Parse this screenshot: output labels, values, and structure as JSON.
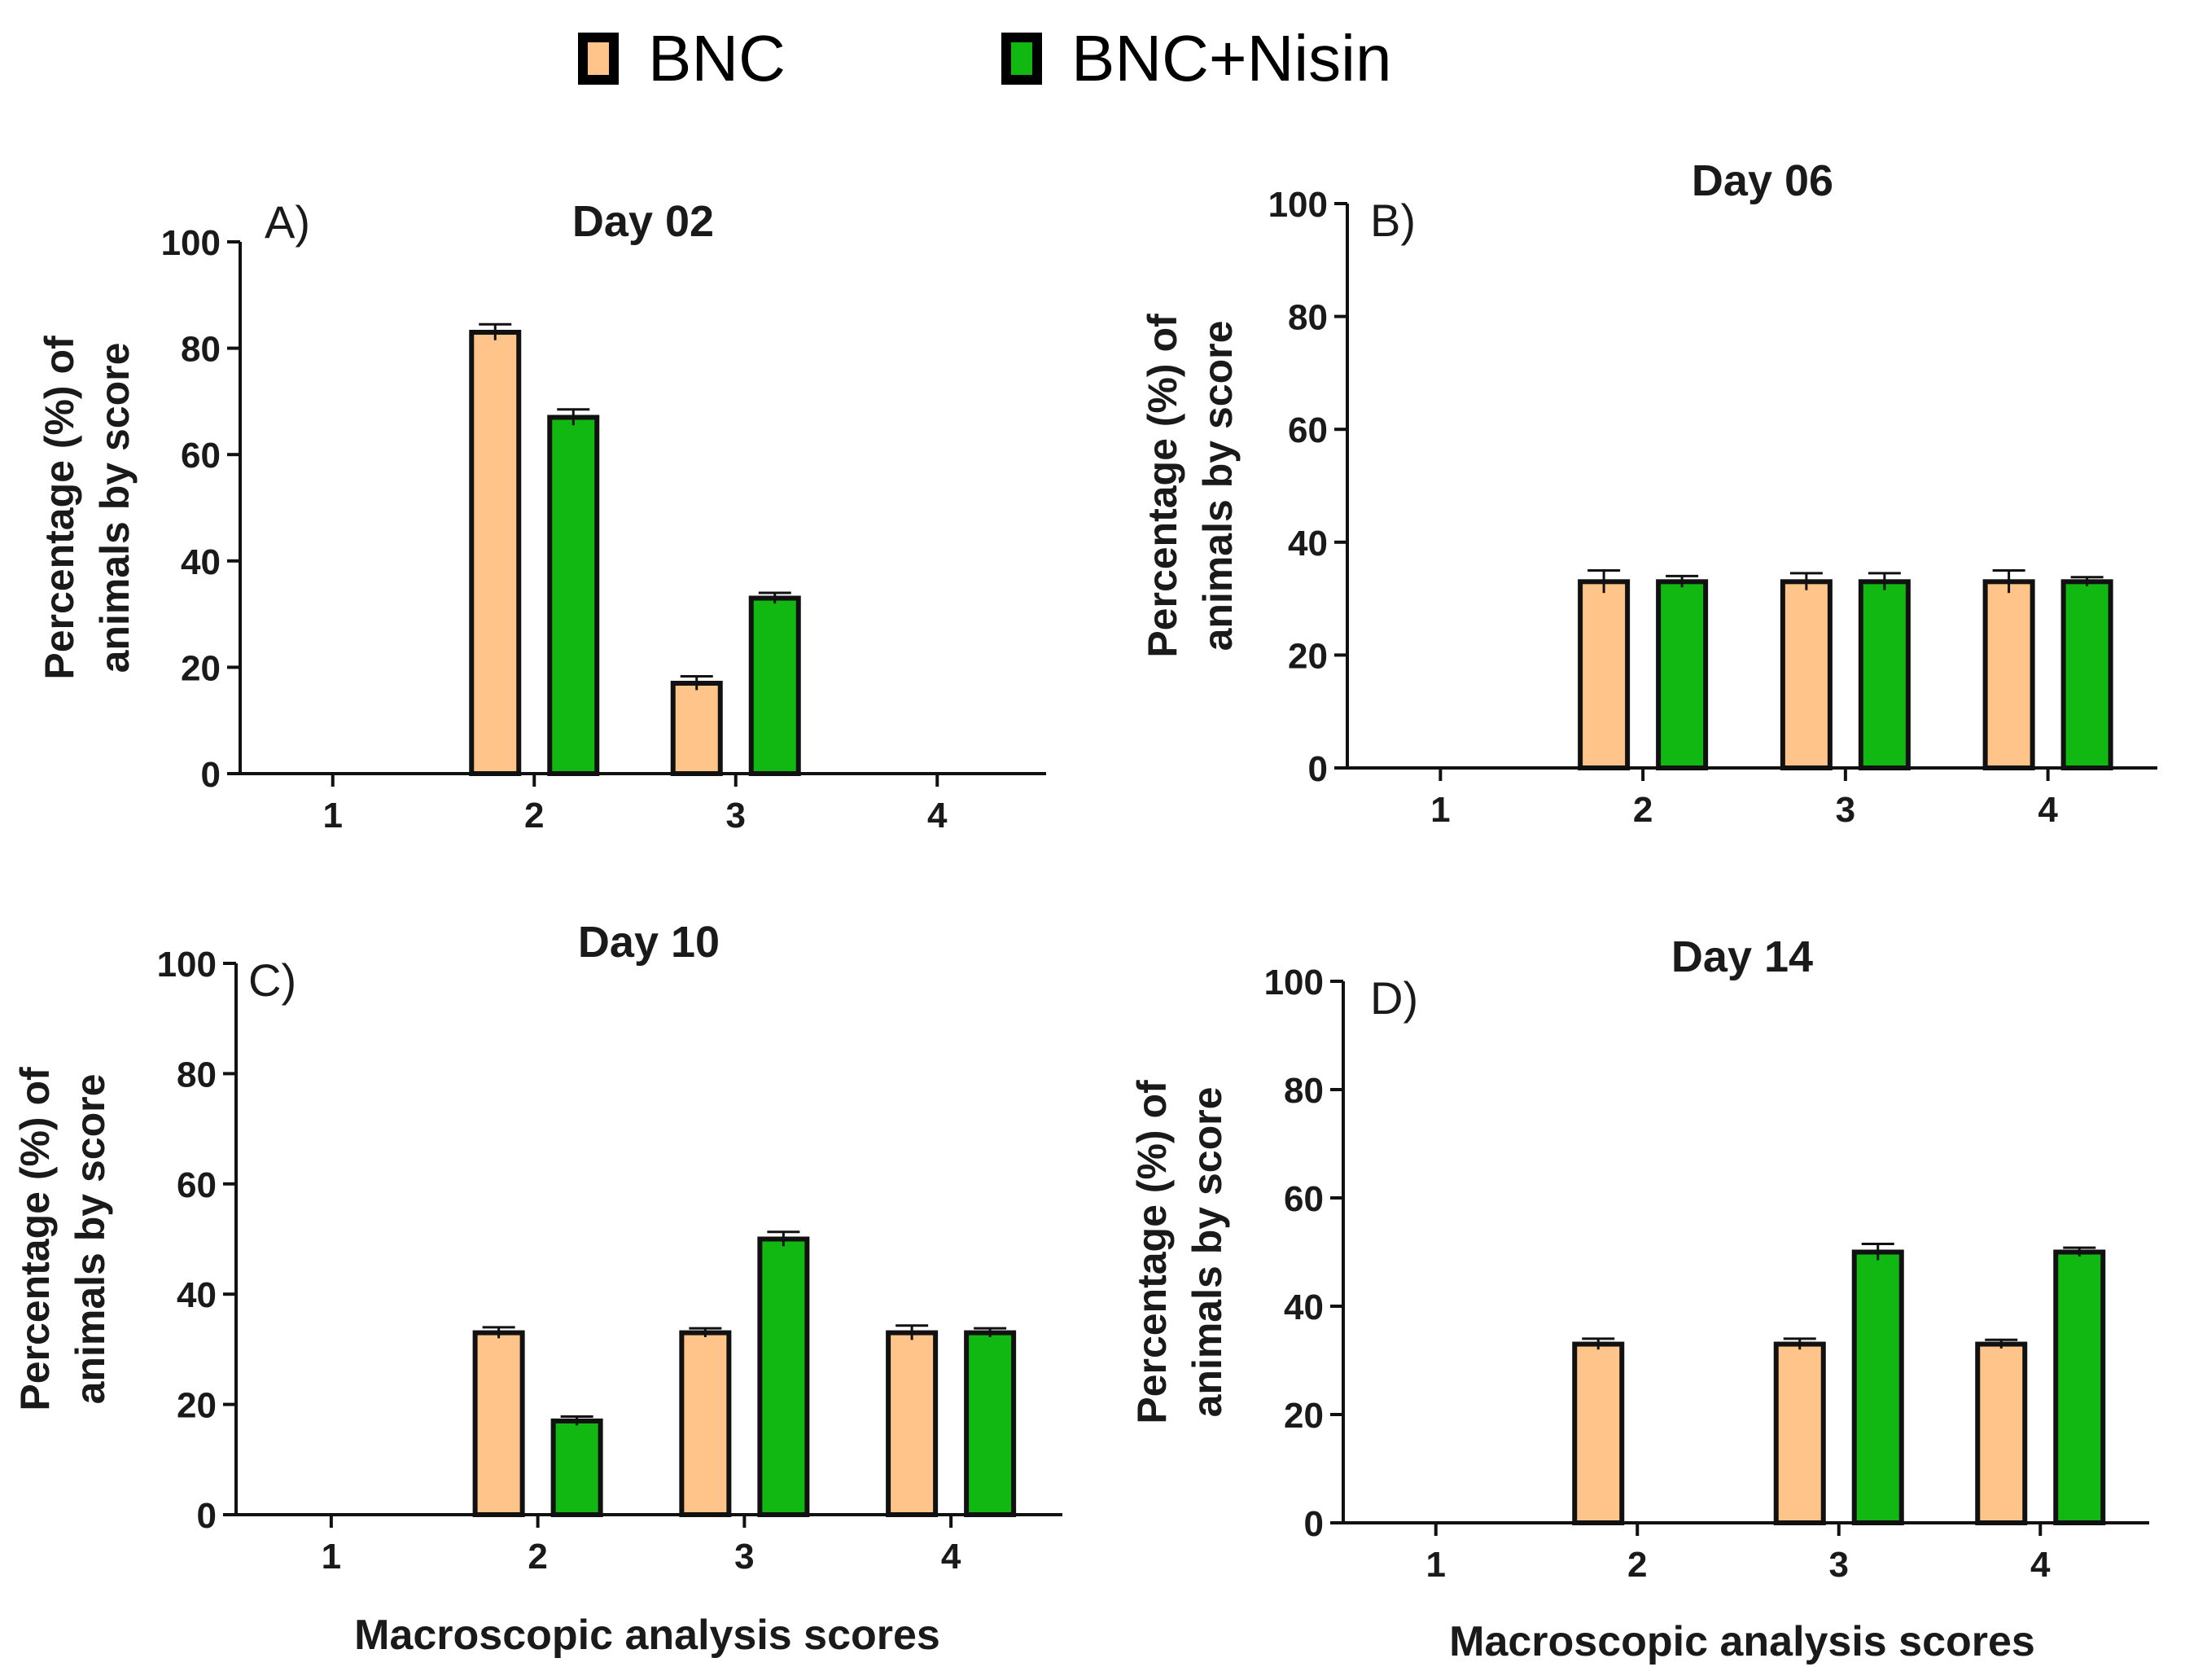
{
  "legend": {
    "items": [
      {
        "label": "BNC",
        "color": "#FFC48A"
      },
      {
        "label": "BNC+Nisin",
        "color": "#12B812"
      }
    ]
  },
  "x_axis_title": "Macroscopic analysis scores",
  "chart_data": [
    {
      "type": "bar",
      "panel_label": "A)",
      "title": "Day 02",
      "xlabel": "",
      "ylabel": "Percentage (%) of animals by score",
      "ylabel_lines": [
        "Percentage (%) of",
        "animals by score"
      ],
      "categories": [
        "1",
        "2",
        "3",
        "4"
      ],
      "yticks": [
        "0",
        "20",
        "40",
        "60",
        "80",
        "100"
      ],
      "ylim": [
        0,
        100
      ],
      "series": [
        {
          "name": "BNC",
          "values": [
            0,
            83,
            17,
            0
          ],
          "errors": [
            0,
            1.5,
            1.3,
            0
          ]
        },
        {
          "name": "BNC+Nisin",
          "values": [
            0,
            67,
            33,
            0
          ],
          "errors": [
            0,
            1.5,
            1,
            0
          ]
        }
      ]
    },
    {
      "type": "bar",
      "panel_label": "B)",
      "title": "Day 06",
      "xlabel": "",
      "ylabel": "Percentage (%) of animals by score",
      "ylabel_lines": [
        "Percentage (%) of",
        "animals by score"
      ],
      "categories": [
        "1",
        "2",
        "3",
        "4"
      ],
      "yticks": [
        "0",
        "20",
        "40",
        "60",
        "80",
        "100"
      ],
      "ylim": [
        0,
        100
      ],
      "series": [
        {
          "name": "BNC",
          "values": [
            0,
            33,
            33,
            33
          ],
          "errors": [
            0,
            2,
            1.5,
            2
          ]
        },
        {
          "name": "BNC+Nisin",
          "values": [
            0,
            33,
            33,
            33
          ],
          "errors": [
            0,
            1,
            1.5,
            0.8
          ]
        }
      ]
    },
    {
      "type": "bar",
      "panel_label": "C)",
      "title": "Day 10",
      "xlabel": "Macroscopic analysis scores",
      "ylabel": "Percentage (%) of animals by score",
      "ylabel_lines": [
        "Percentage (%) of",
        "animals by score"
      ],
      "categories": [
        "1",
        "2",
        "3",
        "4"
      ],
      "yticks": [
        "0",
        "20",
        "40",
        "60",
        "80",
        "100"
      ],
      "ylim": [
        0,
        100
      ],
      "series": [
        {
          "name": "BNC",
          "values": [
            0,
            33,
            33,
            33
          ],
          "errors": [
            0,
            1,
            0.8,
            1.3
          ]
        },
        {
          "name": "BNC+Nisin",
          "values": [
            0,
            17,
            50,
            33
          ],
          "errors": [
            0,
            0.8,
            1.3,
            0.8
          ]
        }
      ]
    },
    {
      "type": "bar",
      "panel_label": "D)",
      "title": "Day 14",
      "xlabel": "Macroscopic analysis scores",
      "ylabel": "Percentage (%) of animals by score",
      "ylabel_lines": [
        "Percentage (%) of",
        "animals by score"
      ],
      "categories": [
        "1",
        "2",
        "3",
        "4"
      ],
      "yticks": [
        "0",
        "20",
        "40",
        "60",
        "80",
        "100"
      ],
      "ylim": [
        0,
        100
      ],
      "series": [
        {
          "name": "BNC",
          "values": [
            0,
            33,
            33,
            33
          ],
          "errors": [
            0,
            1,
            1,
            0.8
          ]
        },
        {
          "name": "BNC+Nisin",
          "values": [
            0,
            0,
            50,
            50
          ],
          "errors": [
            0,
            0,
            1.5,
            0.8
          ]
        }
      ]
    }
  ]
}
